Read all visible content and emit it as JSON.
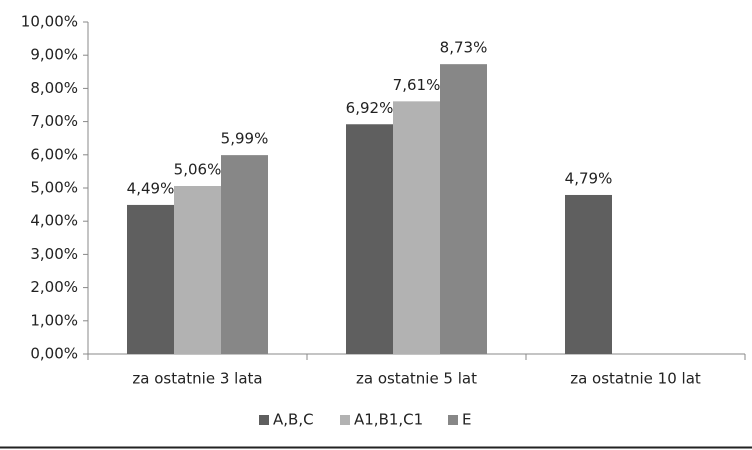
{
  "chart_data": {
    "type": "bar",
    "categories": [
      "za ostatnie 3 lata",
      "za ostatnie 5 lat",
      "za ostatnie 10 lat"
    ],
    "series": [
      {
        "name": "A,B,C",
        "color": "#5f5f5f",
        "values": [
          4.49,
          6.92,
          4.79
        ],
        "value_labels": [
          "4,49%",
          "6,92%",
          "4,79%"
        ]
      },
      {
        "name": "A1,B1,C1",
        "color": "#b2b2b2",
        "values": [
          5.06,
          7.61,
          null
        ],
        "value_labels": [
          "5,06%",
          "7,61%",
          null
        ]
      },
      {
        "name": "E",
        "color": "#878787",
        "values": [
          5.99,
          8.73,
          null
        ],
        "value_labels": [
          "5,99%",
          "8,73%",
          null
        ]
      }
    ],
    "ylim": [
      0,
      10
    ],
    "yticks": [
      {
        "value": 0,
        "label": "0,00%"
      },
      {
        "value": 1,
        "label": "1,00%"
      },
      {
        "value": 2,
        "label": "2,00%"
      },
      {
        "value": 3,
        "label": "3,00%"
      },
      {
        "value": 4,
        "label": "4,00%"
      },
      {
        "value": 5,
        "label": "5,00%"
      },
      {
        "value": 6,
        "label": "6,00%"
      },
      {
        "value": 7,
        "label": "7,00%"
      },
      {
        "value": 8,
        "label": "8,00%"
      },
      {
        "value": 9,
        "label": "9,00%"
      },
      {
        "value": 10,
        "label": "10,00%"
      }
    ],
    "legend": "bottom",
    "grid": false
  }
}
